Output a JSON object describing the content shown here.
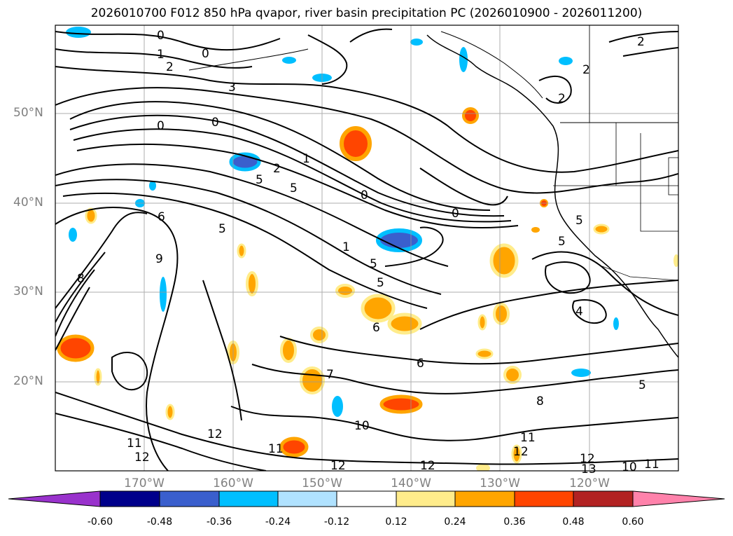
{
  "title": "2026010700 F012 850 hPa qvapor, river basin precipitation PC (2026010900 - 2026011200)",
  "lat_labels": [
    "50°N",
    "40°N",
    "30°N",
    "20°N"
  ],
  "lon_labels": [
    "170°W",
    "160°W",
    "150°W",
    "140°W",
    "130°W",
    "120°W"
  ],
  "contour_labels": [
    "0",
    "1",
    "2",
    "0",
    "3",
    "0",
    "0",
    "1",
    "2",
    "5",
    "5",
    "0",
    "0",
    "6",
    "5",
    "1",
    "9",
    "8",
    "5",
    "5",
    "6",
    "6",
    "7",
    "8",
    "10",
    "12",
    "11",
    "12",
    "11",
    "12",
    "12",
    "12",
    "11",
    "12",
    "13",
    "10",
    "11",
    "2",
    "2",
    "2",
    "4",
    "5",
    "5",
    "5"
  ],
  "colorbar": {
    "ticks": [
      "-0.60",
      "-0.48",
      "-0.36",
      "-0.24",
      "-0.12",
      "0.12",
      "0.24",
      "0.36",
      "0.48",
      "0.60"
    ],
    "colors": [
      "#9932CC",
      "#00008B",
      "#3A5FCD",
      "#00BFFF",
      "#B0E2FF",
      "#FFFFFF",
      "#FFEC8B",
      "#FFA500",
      "#FF4500",
      "#B22222",
      "#FF82AB"
    ]
  }
}
